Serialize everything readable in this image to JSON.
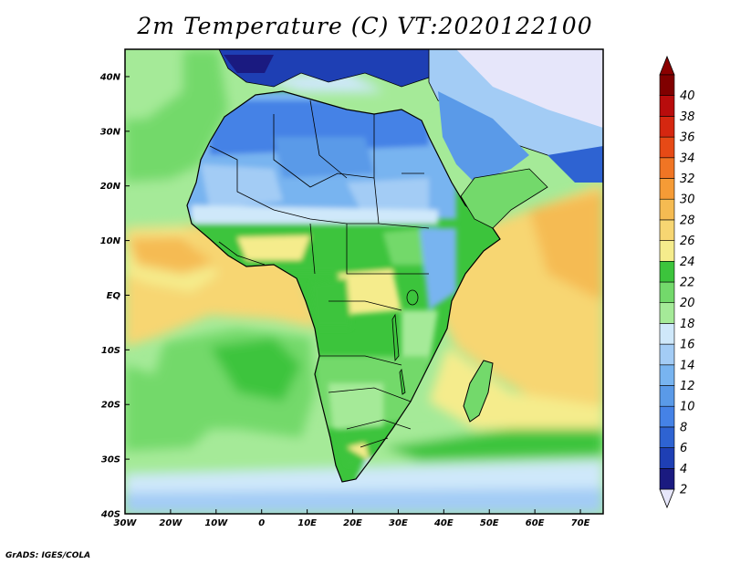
{
  "title": "2m Temperature (C) VT:2020122100",
  "credit": "GrADS: IGES/COLA",
  "map": {
    "lon_range": [
      -30,
      75
    ],
    "lat_range": [
      -40,
      45
    ],
    "lat_ticks": [
      {
        "value": 40,
        "label": "40N"
      },
      {
        "value": 30,
        "label": "30N"
      },
      {
        "value": 20,
        "label": "20N"
      },
      {
        "value": 10,
        "label": "10N"
      },
      {
        "value": 0,
        "label": "EQ"
      },
      {
        "value": -10,
        "label": "10S"
      },
      {
        "value": -20,
        "label": "20S"
      },
      {
        "value": -30,
        "label": "30S"
      },
      {
        "value": -40,
        "label": "40S"
      }
    ],
    "lon_ticks": [
      {
        "value": -30,
        "label": "30W"
      },
      {
        "value": -20,
        "label": "20W"
      },
      {
        "value": -10,
        "label": "10W"
      },
      {
        "value": 0,
        "label": "0"
      },
      {
        "value": 10,
        "label": "10E"
      },
      {
        "value": 20,
        "label": "20E"
      },
      {
        "value": 30,
        "label": "30E"
      },
      {
        "value": 40,
        "label": "40E"
      },
      {
        "value": 50,
        "label": "50E"
      },
      {
        "value": 60,
        "label": "60E"
      },
      {
        "value": 70,
        "label": "70E"
      }
    ]
  },
  "colorbar": {
    "levels": [
      "2",
      "4",
      "6",
      "8",
      "10",
      "12",
      "14",
      "16",
      "18",
      "20",
      "22",
      "24",
      "26",
      "28",
      "30",
      "32",
      "34",
      "36",
      "38",
      "40"
    ],
    "colors": [
      "#1a1a80",
      "#1e3fb4",
      "#2e63d2",
      "#4582e6",
      "#5a9ae8",
      "#78b4f0",
      "#a3ccf5",
      "#cfe8fa",
      "#a5ea98",
      "#73d96b",
      "#3cc43c",
      "#f5ec8c",
      "#f7d672",
      "#f5bb52",
      "#f59b36",
      "#f07524",
      "#e64a16",
      "#d52710",
      "#b80c0c",
      "#800000"
    ],
    "low_color": "#e6e6fa",
    "high_color": "#8b0000"
  }
}
